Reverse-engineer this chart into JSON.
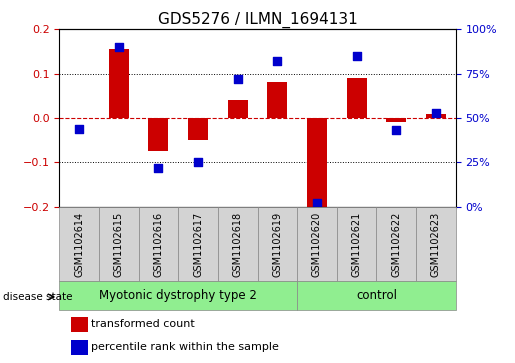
{
  "title": "GDS5276 / ILMN_1694131",
  "samples": [
    "GSM1102614",
    "GSM1102615",
    "GSM1102616",
    "GSM1102617",
    "GSM1102618",
    "GSM1102619",
    "GSM1102620",
    "GSM1102621",
    "GSM1102622",
    "GSM1102623"
  ],
  "transformed_count": [
    0.0,
    0.155,
    -0.075,
    -0.05,
    0.04,
    0.08,
    -0.205,
    0.09,
    -0.01,
    0.01
  ],
  "percentile_rank": [
    44,
    90,
    22,
    25,
    72,
    82,
    2,
    85,
    43,
    53
  ],
  "bar_color": "#cc0000",
  "dot_color": "#0000cc",
  "ylim_left": [
    -0.2,
    0.2
  ],
  "ylim_right": [
    0,
    100
  ],
  "yticks_left": [
    -0.2,
    -0.1,
    0.0,
    0.1,
    0.2
  ],
  "yticks_right": [
    0,
    25,
    50,
    75,
    100
  ],
  "ytick_labels_right": [
    "0%",
    "25%",
    "50%",
    "75%",
    "100%"
  ],
  "groups": [
    {
      "label": "Myotonic dystrophy type 2",
      "start": 0,
      "end": 6,
      "color": "#90ee90"
    },
    {
      "label": "control",
      "start": 6,
      "end": 10,
      "color": "#90ee90"
    }
  ],
  "disease_state_label": "disease state",
  "legend_items": [
    {
      "label": "transformed count",
      "color": "#cc0000"
    },
    {
      "label": "percentile rank within the sample",
      "color": "#0000cc"
    }
  ],
  "grid_color": "#000000",
  "zero_line_color": "#cc0000",
  "bar_width": 0.5,
  "dot_size": 30,
  "background_color": "#ffffff",
  "plot_bg_color": "#ffffff",
  "tick_label_color_left": "#cc0000",
  "tick_label_color_right": "#0000cc",
  "title_fontsize": 11,
  "tick_fontsize": 8,
  "sample_fontsize": 7,
  "legend_fontsize": 8,
  "disease_fontsize": 8.5,
  "sample_box_color": "#d3d3d3"
}
